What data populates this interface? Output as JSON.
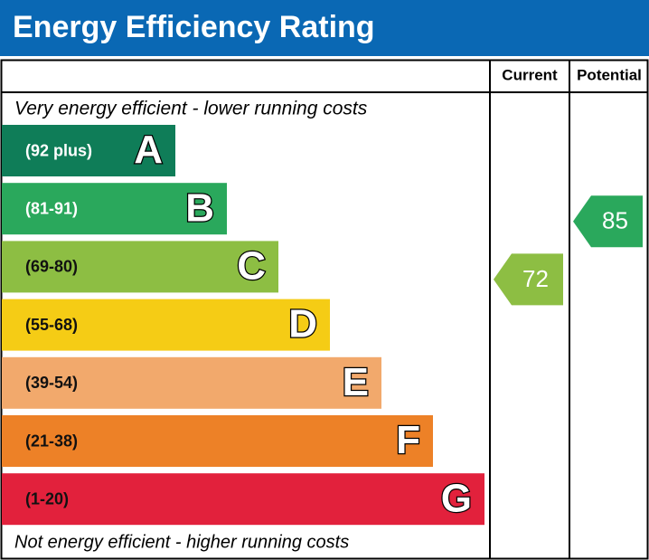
{
  "title": "Energy Efficiency Rating",
  "headers": {
    "current": "Current",
    "potential": "Potential"
  },
  "top_note": "Very energy efficient - lower running costs",
  "bottom_note": "Not energy efficient - higher running costs",
  "bands": [
    {
      "range": "(92 plus)",
      "letter": "A",
      "color": "#0f7d58",
      "text_color": "#ffffff"
    },
    {
      "range": "(81-91)",
      "letter": "B",
      "color": "#2aa85c",
      "text_color": "#ffffff"
    },
    {
      "range": "(69-80)",
      "letter": "C",
      "color": "#8dbe43",
      "text_color": "#111111"
    },
    {
      "range": "(55-68)",
      "letter": "D",
      "color": "#f5cc15",
      "text_color": "#111111"
    },
    {
      "range": "(39-54)",
      "letter": "E",
      "color": "#f2a96c",
      "text_color": "#111111"
    },
    {
      "range": "(21-38)",
      "letter": "F",
      "color": "#ed8127",
      "text_color": "#111111"
    },
    {
      "range": "(1-20)",
      "letter": "G",
      "color": "#e2213c",
      "text_color": "#111111"
    }
  ],
  "current": 72,
  "potential": 85
}
